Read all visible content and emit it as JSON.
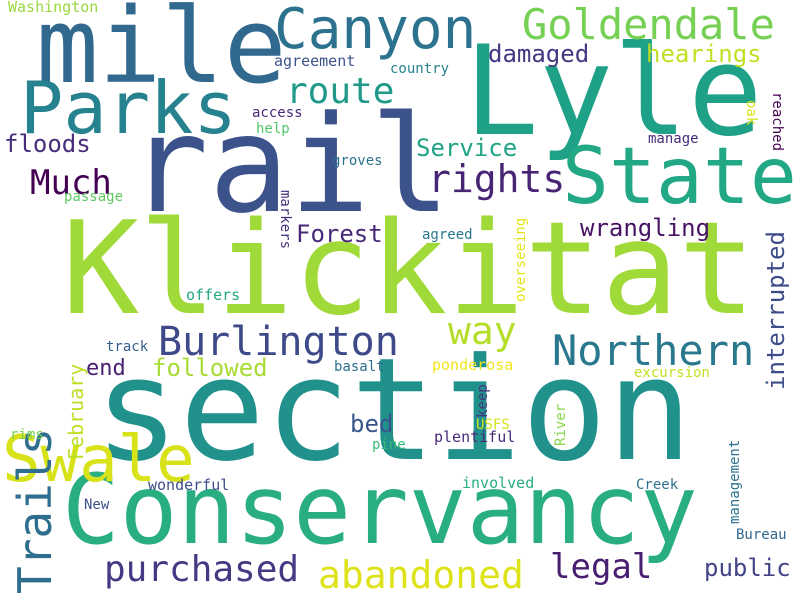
{
  "words": [
    {
      "text": "section",
      "color": "#21918c"
    },
    {
      "text": "Klickitat",
      "color": "#a0da39"
    },
    {
      "text": "rail",
      "color": "#3b528b"
    },
    {
      "text": "Lyle",
      "color": "#1fa187"
    },
    {
      "text": "mile",
      "color": "#31688e"
    },
    {
      "text": "Conservancy",
      "color": "#28ae80"
    },
    {
      "text": "State",
      "color": "#22a884"
    },
    {
      "text": "Parks",
      "color": "#26828e"
    },
    {
      "text": "Swale",
      "color": "#d8e219"
    },
    {
      "text": "Canyon",
      "color": "#2c728e"
    },
    {
      "text": "Goldendale",
      "color": "#75d054"
    },
    {
      "text": "Trails",
      "color": "#2e6e8e"
    },
    {
      "text": "Northern",
      "color": "#2a788e"
    },
    {
      "text": "Burlington",
      "color": "#3e4989"
    },
    {
      "text": "abandoned",
      "color": "#dde318"
    },
    {
      "text": "purchased",
      "color": "#443983"
    },
    {
      "text": "rights",
      "color": "#482475"
    },
    {
      "text": "way",
      "color": "#b5de2b"
    },
    {
      "text": "route",
      "color": "#1f9a8a"
    },
    {
      "text": "Much",
      "color": "#440154"
    },
    {
      "text": "legal",
      "color": "#481f70"
    },
    {
      "text": "Service",
      "color": "#20a486"
    },
    {
      "text": "damaged",
      "color": "#453781"
    },
    {
      "text": "hearings",
      "color": "#c2df23"
    },
    {
      "text": "floods",
      "color": "#472d7b"
    },
    {
      "text": "wrangling",
      "color": "#471365"
    },
    {
      "text": "Forest",
      "color": "#482878"
    },
    {
      "text": "interrupted",
      "color": "#3e4c8a"
    },
    {
      "text": "followed",
      "color": "#a8db34"
    },
    {
      "text": "end",
      "color": "#482071"
    },
    {
      "text": "public",
      "color": "#414487"
    },
    {
      "text": "bed",
      "color": "#39568c"
    },
    {
      "text": "February",
      "color": "#bddf26"
    },
    {
      "text": "Washington",
      "color": "#98d83e"
    },
    {
      "text": "agreement",
      "color": "#3b528b"
    },
    {
      "text": "country",
      "color": "#25848e"
    },
    {
      "text": "access",
      "color": "#482878"
    },
    {
      "text": "help",
      "color": "#52c569"
    },
    {
      "text": "oak",
      "color": "#dae319"
    },
    {
      "text": "reached",
      "color": "#440154"
    },
    {
      "text": "manage",
      "color": "#472c7a"
    },
    {
      "text": "groves",
      "color": "#2d708e"
    },
    {
      "text": "passage",
      "color": "#5ec962"
    },
    {
      "text": "markers",
      "color": "#46307e"
    },
    {
      "text": "agreed",
      "color": "#2a788e"
    },
    {
      "text": "overseeing",
      "color": "#e5e419"
    },
    {
      "text": "offers",
      "color": "#22a884"
    },
    {
      "text": "track",
      "color": "#365d8d"
    },
    {
      "text": "basalt",
      "color": "#2e6f8e"
    },
    {
      "text": "excursion",
      "color": "#c5e021"
    },
    {
      "text": "ponderosa",
      "color": "#f1e51d"
    },
    {
      "text": "keep",
      "color": "#46337e"
    },
    {
      "text": "USFS",
      "color": "#d5e21a"
    },
    {
      "text": "River",
      "color": "#86d549"
    },
    {
      "text": "rims",
      "color": "#7ad151"
    },
    {
      "text": "pine",
      "color": "#3aba76"
    },
    {
      "text": "plentiful",
      "color": "#482878"
    },
    {
      "text": "management",
      "color": "#2c728e"
    },
    {
      "text": "wonderful",
      "color": "#3d4d8a"
    },
    {
      "text": "involved",
      "color": "#26ad81"
    },
    {
      "text": "Creek",
      "color": "#2d708e"
    },
    {
      "text": "New",
      "color": "#3b528b"
    },
    {
      "text": "Bureau",
      "color": "#31688e"
    }
  ]
}
